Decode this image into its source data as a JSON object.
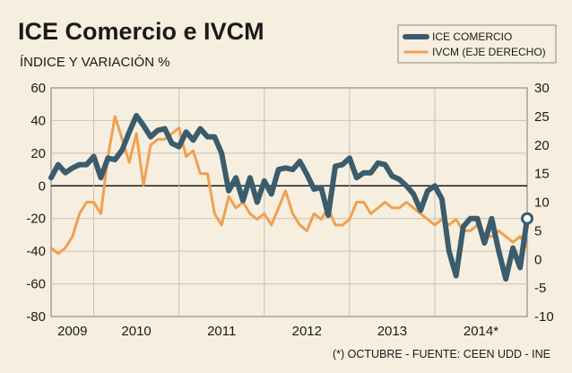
{
  "chart_data": {
    "type": "line",
    "title": "ICE Comercio e IVCM",
    "subtitle": "ÍNDICE Y VARIACIÓN %",
    "source": "(*) OCTUBRE - FUENTE: CEEN UDD - INE",
    "x_labels": [
      "2009",
      "2010",
      "2011",
      "2012",
      "2013",
      "2014*"
    ],
    "y_left": {
      "min": -80,
      "max": 60,
      "ticks": [
        "60",
        "40",
        "20",
        "0",
        "-20",
        "-40",
        "-60",
        "-80"
      ]
    },
    "y_right": {
      "min": -10,
      "max": 30,
      "ticks": [
        "30",
        "25",
        "20",
        "15",
        "10",
        "5",
        "0",
        "-5",
        "-10"
      ]
    },
    "grid": true,
    "legend_position": "top-right",
    "colors": {
      "ice": "#3b5c6c",
      "ivcm": "#f0a050",
      "background": "#f6efe0"
    },
    "series": [
      {
        "name": "ICE COMERCIO",
        "axis": "left",
        "values": [
          5,
          13,
          8,
          11,
          13,
          13,
          18,
          5,
          17,
          16,
          22,
          33,
          43,
          37,
          30,
          34,
          35,
          26,
          24,
          33,
          28,
          35,
          30,
          30,
          20,
          -3,
          5,
          -9,
          5,
          -10,
          3,
          -5,
          10,
          11,
          10,
          15,
          7,
          -2,
          -1,
          -18,
          12,
          13,
          17,
          5,
          8,
          8,
          14,
          13,
          6,
          4,
          0,
          -5,
          -15,
          -3,
          0,
          -8,
          -40,
          -55,
          -25,
          -20,
          -20,
          -35,
          -20,
          -40,
          -57,
          -38,
          -50,
          -20
        ],
        "marker_last": true
      },
      {
        "name": "IVCM (EJE DERECHO)",
        "axis": "right",
        "values": [
          2,
          1,
          2,
          4,
          8,
          10,
          10,
          8,
          18,
          25,
          21,
          17,
          22,
          13,
          20,
          21,
          21,
          22,
          23,
          18,
          19,
          15,
          15,
          8,
          6,
          11,
          9,
          10,
          8,
          7,
          8,
          6,
          9,
          12,
          8,
          6,
          5,
          8,
          7,
          9,
          6,
          6,
          7,
          10,
          10,
          8,
          9,
          10,
          9,
          9,
          10,
          9,
          8,
          7,
          6,
          7,
          6,
          7,
          5,
          5,
          6,
          4,
          4,
          5,
          4,
          3,
          4,
          2
        ]
      }
    ]
  }
}
